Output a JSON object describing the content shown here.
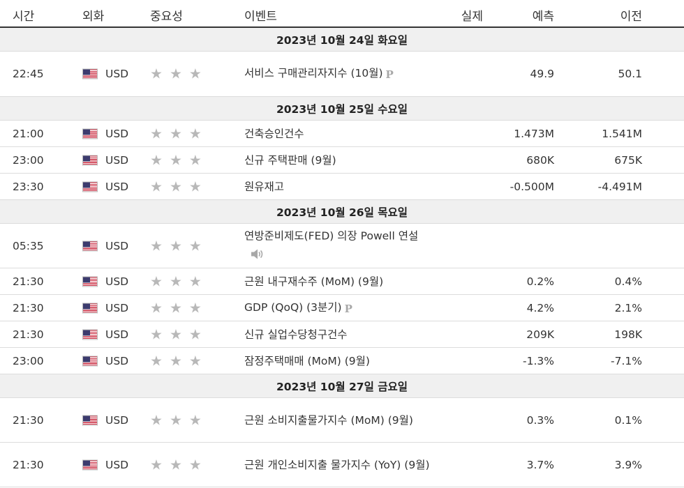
{
  "headers": {
    "time": "시간",
    "currency": "외화",
    "importance": "중요성",
    "event": "이벤트",
    "actual": "실제",
    "forecast": "예측",
    "previous": "이전"
  },
  "days": [
    {
      "label": "2023년 10월 24일 화요일"
    },
    {
      "label": "2023년 10월 25일 수요일"
    },
    {
      "label": "2023년 10월 26일 목요일"
    },
    {
      "label": "2023년 10월 27일 금요일"
    }
  ],
  "events": [
    {
      "time": "22:45",
      "currency": "USD",
      "flag": "us-flag-icon",
      "stars": 3,
      "event": "서비스 구매관리자지수 (10월)",
      "badge": "preliminary-icon",
      "actual": "",
      "forecast": "49.9",
      "previous": "50.1"
    },
    {
      "time": "21:00",
      "currency": "USD",
      "flag": "us-flag-icon",
      "stars": 3,
      "event": "건축승인건수",
      "actual": "",
      "forecast": "1.473M",
      "previous": "1.541M"
    },
    {
      "time": "23:00",
      "currency": "USD",
      "flag": "us-flag-icon",
      "stars": 3,
      "event": "신규 주택판매 (9월)",
      "actual": "",
      "forecast": "680K",
      "previous": "675K"
    },
    {
      "time": "23:30",
      "currency": "USD",
      "flag": "us-flag-icon",
      "stars": 3,
      "event": "원유재고",
      "actual": "",
      "forecast": "-0.500M",
      "previous": "-4.491M"
    },
    {
      "time": "05:35",
      "currency": "USD",
      "flag": "us-flag-icon",
      "stars": 3,
      "event": "연방준비제도(FED) 의장 Powell 연설",
      "badge": "speaker-icon",
      "actual": "",
      "forecast": "",
      "previous": ""
    },
    {
      "time": "21:30",
      "currency": "USD",
      "flag": "us-flag-icon",
      "stars": 3,
      "event": "근원 내구재수주 (MoM) (9월)",
      "actual": "",
      "forecast": "0.2%",
      "previous": "0.4%"
    },
    {
      "time": "21:30",
      "currency": "USD",
      "flag": "us-flag-icon",
      "stars": 3,
      "event": "GDP (QoQ) (3분기)",
      "badge": "preliminary-icon",
      "actual": "",
      "forecast": "4.2%",
      "previous": "2.1%"
    },
    {
      "time": "21:30",
      "currency": "USD",
      "flag": "us-flag-icon",
      "stars": 3,
      "event": "신규 실업수당청구건수",
      "actual": "",
      "forecast": "209K",
      "previous": "198K"
    },
    {
      "time": "23:00",
      "currency": "USD",
      "flag": "us-flag-icon",
      "stars": 3,
      "event": "잠정주택매매 (MoM) (9월)",
      "actual": "",
      "forecast": "-1.3%",
      "previous": "-7.1%"
    },
    {
      "time": "21:30",
      "currency": "USD",
      "flag": "us-flag-icon",
      "stars": 3,
      "event": "근원 소비지출물가지수 (MoM) (9월)",
      "actual": "",
      "forecast": "0.3%",
      "previous": "0.1%"
    },
    {
      "time": "21:30",
      "currency": "USD",
      "flag": "us-flag-icon",
      "stars": 3,
      "event": "근원 개인소비지출 물가지수 (YoY) (9월)",
      "actual": "",
      "forecast": "3.7%",
      "previous": "3.9%"
    }
  ],
  "badges": {
    "preliminary": "P"
  },
  "colors": {
    "day_bg": "#f0f0f0",
    "star": "#b8b8b8",
    "border": "#dcdcdc"
  }
}
